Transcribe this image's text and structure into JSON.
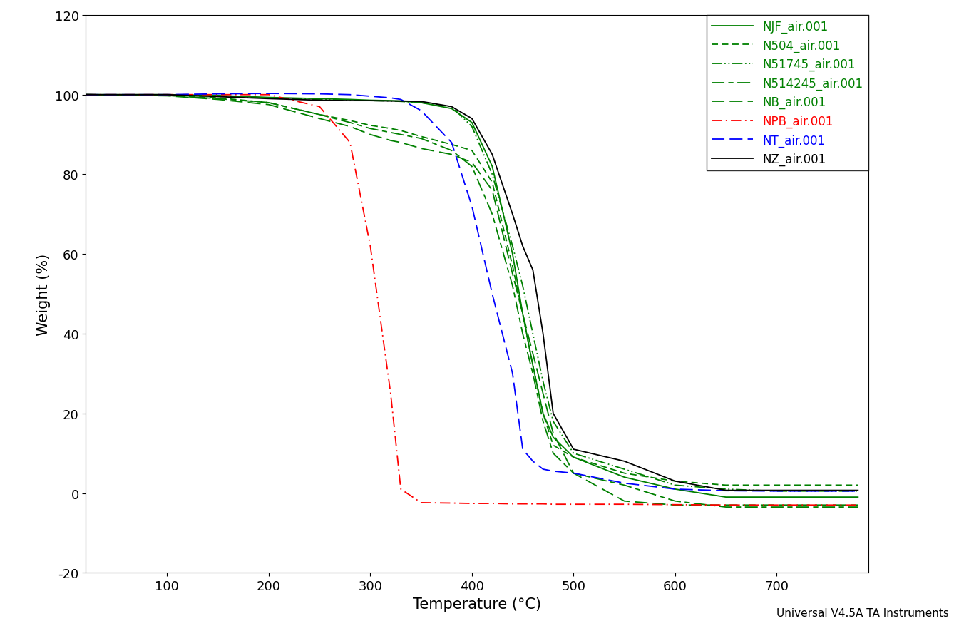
{
  "chart_data": {
    "type": "line",
    "x_label": "Temperature (°C)",
    "y_label": "Weight (%)",
    "annotation": "Universal V4.5A TA Instruments",
    "xlim": [
      20,
      790
    ],
    "xticks": [
      100,
      200,
      300,
      400,
      500,
      600,
      700
    ],
    "ylim": [
      -20,
      120
    ],
    "yticks": [
      -20,
      0,
      20,
      40,
      60,
      80,
      100,
      120
    ],
    "grid": false,
    "legend": "upper right",
    "x": [
      20,
      100,
      150,
      200,
      250,
      280,
      300,
      320,
      330,
      350,
      380,
      400,
      420,
      440,
      450,
      460,
      470,
      480,
      500,
      550,
      600,
      650,
      700,
      780
    ],
    "series": [
      {
        "name": "NJF_air.001",
        "color": "#008000",
        "line_style": "solid",
        "values": [
          100,
          100,
          99.8,
          99.3,
          99,
          98.8,
          98.6,
          98.5,
          98.4,
          98,
          96.5,
          93,
          82,
          60,
          45,
          32,
          20,
          14,
          9,
          4,
          1,
          -1,
          -1,
          -1
        ]
      },
      {
        "name": "N504_air.001",
        "color": "#008000",
        "line_style": "dashed",
        "values": [
          100,
          99.8,
          99.2,
          98,
          95,
          93.5,
          92.3,
          91.5,
          91,
          89.5,
          87.5,
          86,
          78,
          57,
          45,
          32,
          20,
          12,
          9,
          5,
          3,
          2,
          2,
          2
        ]
      },
      {
        "name": "N51745_air.001",
        "color": "#008000",
        "line_style": "dashdotdot",
        "values": [
          100,
          99.9,
          99.6,
          99.2,
          98.8,
          98.6,
          98.5,
          98.4,
          98.3,
          98,
          97,
          92,
          80,
          62,
          52,
          40,
          28,
          18,
          10,
          6,
          2,
          1,
          0.5,
          0.5
        ]
      },
      {
        "name": "N514245_air.001",
        "color": "#008000",
        "line_style": "longdashshort",
        "values": [
          100,
          99.8,
          99,
          98,
          95,
          93,
          91.5,
          90.5,
          90,
          89,
          86,
          82,
          70,
          52,
          40,
          30,
          18,
          10,
          5,
          2,
          -2,
          -3.5,
          -3.5,
          -3.5
        ]
      },
      {
        "name": "NB_air.001",
        "color": "#008000",
        "line_style": "longdash",
        "values": [
          100,
          99.7,
          98.8,
          97.5,
          94,
          92,
          90,
          88.5,
          88,
          86.5,
          85,
          83,
          76,
          55,
          45,
          35,
          25,
          15,
          5,
          -2,
          -3,
          -3,
          -3,
          -3
        ]
      },
      {
        "name": "NPB_air.001",
        "color": "#ff0000",
        "line_style": "dashdot",
        "values": [
          100,
          100,
          100,
          100,
          97,
          88,
          62,
          25,
          1,
          -2.4,
          -2.5,
          -2.6,
          -2.6,
          -2.7,
          -2.7,
          -2.7,
          -2.7,
          -2.8,
          -2.8,
          -2.8,
          -2.9,
          -3,
          -3,
          -3
        ]
      },
      {
        "name": "NT_air.001",
        "color": "#0000ff",
        "line_style": "longdash",
        "values": [
          100,
          100,
          100.2,
          100.3,
          100.2,
          100,
          99.6,
          99.2,
          98.8,
          96,
          88,
          72,
          50,
          30,
          11,
          8,
          6,
          5.5,
          5,
          2.5,
          1,
          0.6,
          0.5,
          0.5
        ]
      },
      {
        "name": "NZ_air.001",
        "color": "#000000",
        "line_style": "solid",
        "values": [
          100,
          100,
          99.5,
          99,
          98.6,
          98.5,
          98.5,
          98.4,
          98.4,
          98.3,
          97,
          94,
          85,
          70,
          62,
          56,
          40,
          20,
          11,
          8,
          3,
          0.7,
          0.7,
          0.7
        ]
      }
    ]
  }
}
